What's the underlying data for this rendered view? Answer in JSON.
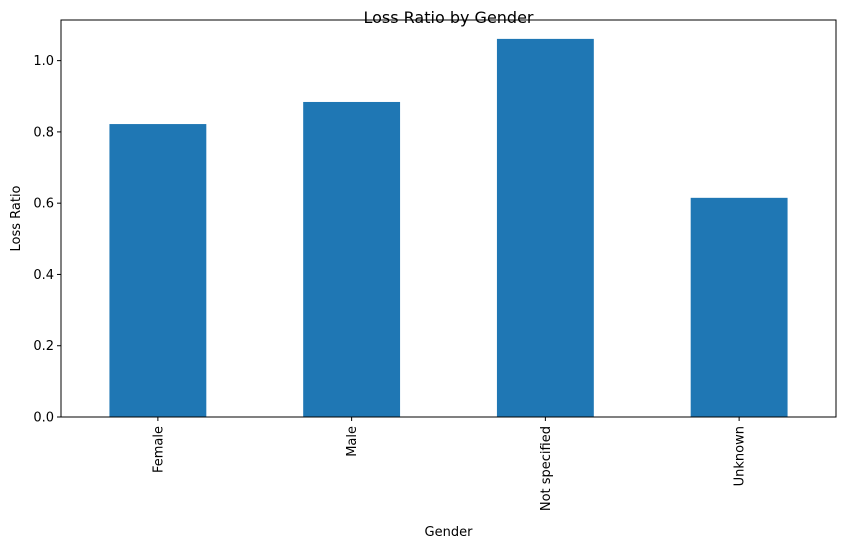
{
  "chart_data": {
    "type": "bar",
    "title": "Loss Ratio by Gender",
    "xlabel": "Gender",
    "ylabel": "Loss Ratio",
    "categories": [
      "Female",
      "Male",
      "Not specified",
      "Unknown"
    ],
    "values": [
      0.822,
      0.884,
      1.061,
      0.615
    ],
    "ylim": [
      0,
      1.114
    ],
    "yticks": [
      "0.0",
      "0.2",
      "0.4",
      "0.6",
      "0.8",
      "1.0"
    ],
    "grid": false,
    "bar_color": "#1f77b4"
  }
}
